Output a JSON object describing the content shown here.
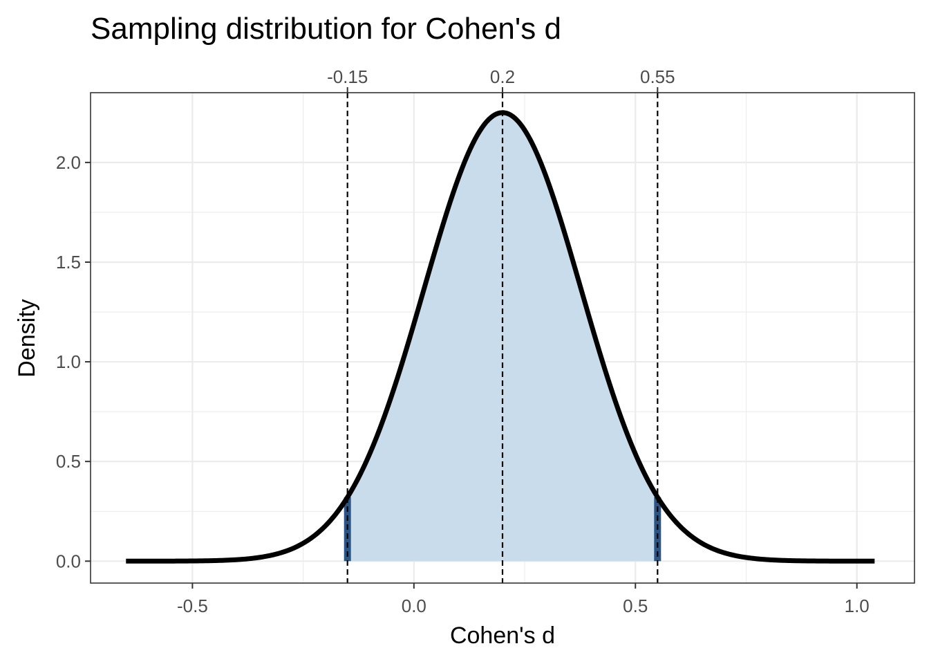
{
  "chart_data": {
    "type": "area",
    "title": "Sampling distribution for Cohen's d",
    "xlabel": "Cohen's d",
    "ylabel": "Density",
    "xlim": [
      -0.73,
      1.13
    ],
    "ylim": [
      -0.11,
      2.35
    ],
    "x_ticks": [
      -0.5,
      0.0,
      0.5,
      1.0
    ],
    "x_tick_labels": [
      "-0.5",
      "0.0",
      "0.5",
      "1.0"
    ],
    "y_ticks": [
      0.0,
      0.5,
      1.0,
      1.5,
      2.0
    ],
    "y_tick_labels": [
      "0.0",
      "0.5",
      "1.0",
      "1.5",
      "2.0"
    ],
    "grid": true,
    "distribution": {
      "name": "normal",
      "mean": 0.2,
      "sd": 0.1773,
      "x_range": [
        -0.65,
        1.04
      ]
    },
    "shaded_region": {
      "x_from": -0.15,
      "x_to": 0.55
    },
    "reference_lines": [
      {
        "x": -0.15,
        "label": "-0.15"
      },
      {
        "x": 0.2,
        "label": "0.2"
      },
      {
        "x": 0.55,
        "label": "0.55"
      }
    ],
    "colors": {
      "curve": "#000000",
      "fill": "#c9dcec",
      "bound_marks": "#2b5585",
      "reference_lines": "#000000",
      "panel_border": "#333333",
      "grid": "#ebebeb"
    }
  }
}
